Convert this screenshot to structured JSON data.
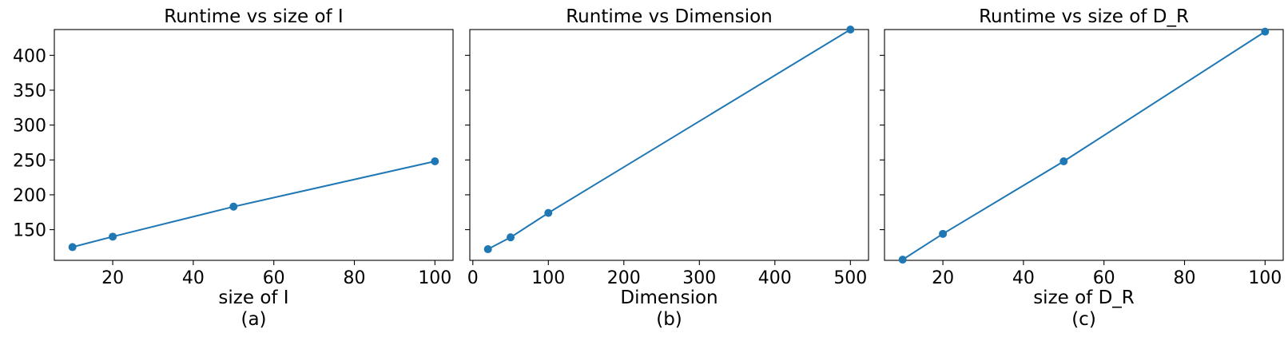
{
  "figure": {
    "series_color": "#1f77b4",
    "panels": [
      {
        "id": "a",
        "title": "Runtime vs size of I",
        "xlabel": "size of I",
        "sublabel": "(a)"
      },
      {
        "id": "b",
        "title": "Runtime vs Dimension",
        "xlabel": "Dimension",
        "sublabel": "(b)"
      },
      {
        "id": "c",
        "title": "Runtime vs size of D_R",
        "xlabel": "size of D_R",
        "sublabel": "(c)"
      }
    ]
  },
  "chart_data": [
    {
      "type": "line",
      "title": "Runtime vs size of I",
      "xlabel": "size of I",
      "ylabel": "",
      "x": [
        10,
        20,
        50,
        100
      ],
      "y": [
        125,
        140,
        183,
        248
      ],
      "xlim": [
        5.5,
        104.5
      ],
      "ylim": [
        106,
        437
      ],
      "xticks": [
        20,
        40,
        60,
        80,
        100
      ],
      "yticks": [
        150,
        200,
        250,
        300,
        350,
        400
      ],
      "grid": false,
      "marker": "circle"
    },
    {
      "type": "line",
      "title": "Runtime vs Dimension",
      "xlabel": "Dimension",
      "ylabel": "",
      "x": [
        20,
        50,
        100,
        500
      ],
      "y": [
        122,
        139,
        174,
        437
      ],
      "xlim": [
        -4,
        524
      ],
      "ylim": [
        106,
        437
      ],
      "xticks": [
        0,
        100,
        200,
        300,
        400,
        500
      ],
      "yticks": [
        150,
        200,
        250,
        300,
        350,
        400
      ],
      "grid": false,
      "marker": "circle"
    },
    {
      "type": "line",
      "title": "Runtime vs size of D_R",
      "xlabel": "size of D_R",
      "ylabel": "",
      "x": [
        10,
        20,
        50,
        100
      ],
      "y": [
        107,
        144,
        248,
        434
      ],
      "xlim": [
        5.5,
        104.5
      ],
      "ylim": [
        106,
        437
      ],
      "xticks": [
        20,
        40,
        60,
        80,
        100
      ],
      "yticks": [
        150,
        200,
        250,
        300,
        350,
        400
      ],
      "grid": false,
      "marker": "circle"
    }
  ]
}
